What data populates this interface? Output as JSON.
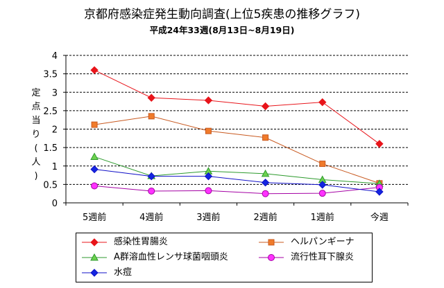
{
  "chart_data": {
    "type": "line",
    "title": "京都府感染症発生動向調査(上位5疾患の推移グラフ)",
    "subtitle": "平成24年33週(8月13日~8月19日)",
    "ylabel_chars": [
      "定",
      "点",
      "当",
      "り",
      "(",
      "人",
      ")"
    ],
    "xlabel": "",
    "categories": [
      "5週前",
      "4週前",
      "3週前",
      "2週前",
      "1週前",
      "今週"
    ],
    "ylim": [
      0,
      4
    ],
    "ytick_labels": [
      "0",
      "0.5",
      "1",
      "1.5",
      "2",
      "2.5",
      "3",
      "3.5",
      "4"
    ],
    "grid": "horizontal-dashed",
    "legend_position": "bottom",
    "series": [
      {
        "name": "感染性胃腸炎",
        "color": "#e8141a",
        "marker": "diamond",
        "marker_fill": "#e8141a",
        "values": [
          3.6,
          2.85,
          2.78,
          2.62,
          2.73,
          1.6
        ]
      },
      {
        "name": "ヘルパンギーナ",
        "color": "#c8581e",
        "marker": "square",
        "marker_fill": "#f07b2b",
        "values": [
          2.12,
          2.35,
          1.95,
          1.77,
          1.06,
          0.53
        ]
      },
      {
        "name": "A群溶血性レンサ球菌咽頭炎",
        "color": "#2c9a2c",
        "marker": "triangle",
        "marker_fill": "#6dd14f",
        "values": [
          1.25,
          0.73,
          0.86,
          0.79,
          0.63,
          0.52
        ]
      },
      {
        "name": "流行性耳下腺炎",
        "color": "#a400a4",
        "marker": "circle",
        "marker_fill": "#ff33ff",
        "values": [
          0.46,
          0.32,
          0.33,
          0.25,
          0.26,
          0.42
        ]
      },
      {
        "name": "水痘",
        "color": "#1010c8",
        "marker": "diamond",
        "marker_fill": "#1426e0",
        "values": [
          0.91,
          0.72,
          0.72,
          0.55,
          0.49,
          0.3
        ]
      }
    ]
  }
}
